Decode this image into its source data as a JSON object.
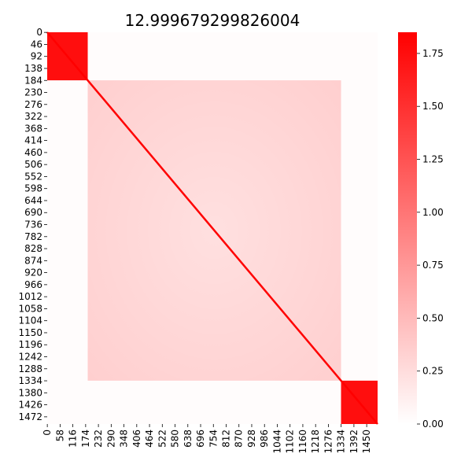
{
  "chart_data": {
    "type": "heatmap",
    "title": "12.999679299826004",
    "n": 1500,
    "x_ticks": [
      "0",
      "58",
      "116",
      "174",
      "232",
      "290",
      "348",
      "406",
      "464",
      "522",
      "580",
      "638",
      "696",
      "754",
      "812",
      "870",
      "928",
      "986",
      "1044",
      "1102",
      "1160",
      "1218",
      "1276",
      "1334",
      "1392",
      "1450"
    ],
    "y_ticks": [
      "0",
      "46",
      "92",
      "138",
      "184",
      "230",
      "276",
      "322",
      "368",
      "414",
      "460",
      "506",
      "552",
      "598",
      "644",
      "690",
      "736",
      "782",
      "828",
      "874",
      "920",
      "966",
      "1012",
      "1058",
      "1104",
      "1150",
      "1196",
      "1242",
      "1288",
      "1334",
      "1380",
      "1426",
      "1472"
    ],
    "colorbar": {
      "min": 0.0,
      "max": 1.85,
      "ticks": [
        "0.00",
        "0.25",
        "0.50",
        "0.75",
        "1.00",
        "1.25",
        "1.50",
        "1.75"
      ],
      "colormap": [
        "#ffffff",
        "#ff0000"
      ]
    },
    "blocks": [
      {
        "from": 0,
        "to": 184,
        "value": 1.75
      },
      {
        "from": 184,
        "to": 1334,
        "value": 0.35
      },
      {
        "from": 1334,
        "to": 1500,
        "value": 1.75
      }
    ],
    "diagonal_value": 1.85,
    "background_value": 0.02
  }
}
